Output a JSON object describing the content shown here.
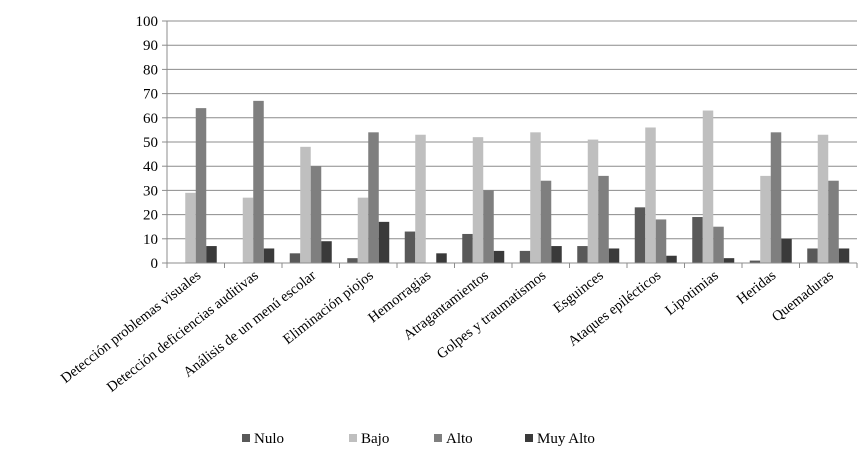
{
  "chart_data": {
    "type": "bar",
    "categories": [
      "Detección problemas visuales",
      "Detección deficiencias auditivas",
      "Análisis de un menú escolar",
      "Eliminación piojos",
      "Hemorragias",
      "Atragantamientos",
      "Golpes y traumatismos",
      "Esguinces",
      "Ataques epilécticos",
      "Lipotimias",
      "Heridas",
      "Quemaduras"
    ],
    "series": [
      {
        "name": "Nulo",
        "color": "#595959",
        "values": [
          0,
          0,
          4,
          2,
          13,
          12,
          5,
          7,
          23,
          19,
          1,
          6
        ]
      },
      {
        "name": "Bajo",
        "color": "#bfbfbf",
        "values": [
          29,
          27,
          48,
          27,
          53,
          52,
          54,
          51,
          56,
          63,
          36,
          53
        ]
      },
      {
        "name": "Alto",
        "color": "#7f7f7f",
        "values": [
          64,
          67,
          40,
          54,
          0,
          30,
          34,
          36,
          18,
          15,
          54,
          34
        ]
      },
      {
        "name": "Muy Alto",
        "color": "#3a3a3a",
        "values": [
          7,
          6,
          9,
          17,
          4,
          5,
          7,
          6,
          3,
          2,
          10,
          6
        ]
      }
    ],
    "ylim": [
      0,
      100
    ],
    "yticks": [
      0,
      10,
      20,
      30,
      40,
      50,
      60,
      70,
      80,
      90,
      100
    ],
    "grid": true,
    "legend_position": "bottom",
    "title": "",
    "xlabel": "",
    "ylabel": ""
  }
}
